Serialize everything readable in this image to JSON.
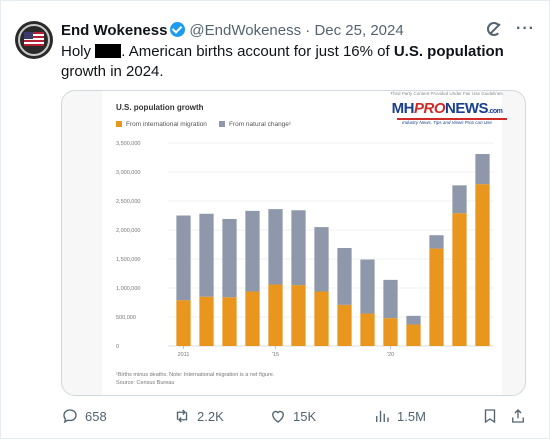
{
  "tweet": {
    "author_name": "End Wokeness",
    "handle": "@EndWokeness",
    "separator": "·",
    "date": "Dec 25, 2024",
    "text_prefix": "Holy",
    "text_middle": ". American births account for just 16% of",
    "text_bold": "U.S. population",
    "text_suffix": "growth in 2024."
  },
  "watermark": {
    "note": "Third Party Content Provided Under Fair Use Guidelines.",
    "logo_mh": "MH",
    "logo_pro": "PRO",
    "logo_news": "NEWS",
    "logo_com": ".com",
    "tagline": "Industry News, Tips and Views Pros can Use"
  },
  "chart_data": {
    "type": "bar",
    "title": "U.S. population growth",
    "stacked": true,
    "categories": [
      "2011",
      "2012",
      "2013",
      "2014",
      "2015",
      "2016",
      "2017",
      "2018",
      "2019",
      "2020",
      "2021",
      "2022",
      "2023",
      "2024"
    ],
    "x_tick_labels": [
      "2011",
      "'15",
      "'20"
    ],
    "series": [
      {
        "name": "From international migration",
        "color": "#e8961e",
        "values": [
          790000,
          850000,
          840000,
          940000,
          1060000,
          1050000,
          940000,
          710000,
          560000,
          480000,
          370000,
          1680000,
          2290000,
          2790000
        ]
      },
      {
        "name": "From natural change¹",
        "color": "#8f98aa",
        "values": [
          1460000,
          1430000,
          1350000,
          1390000,
          1300000,
          1290000,
          1110000,
          980000,
          930000,
          660000,
          150000,
          230000,
          480000,
          520000
        ]
      }
    ],
    "y_ticks": [
      "0",
      "500,000",
      "1,000,000",
      "1,500,000",
      "2,000,000",
      "2,500,000",
      "3,000,000",
      "3,500,000"
    ],
    "ylim": [
      0,
      3500000
    ],
    "grid": true,
    "legend_position": "top-left",
    "footnote_1": "¹Births minus deaths. Note: International migration is a net figure.",
    "footnote_2": "Source: Census Bureau"
  },
  "actions": {
    "replies": "658",
    "reposts": "2.2K",
    "likes": "15K",
    "views": "1.5M"
  },
  "icons": [
    "verified-badge-icon",
    "grok-icon",
    "more-icon",
    "reply-icon",
    "repost-icon",
    "like-icon",
    "views-icon",
    "bookmark-icon",
    "share-icon"
  ]
}
